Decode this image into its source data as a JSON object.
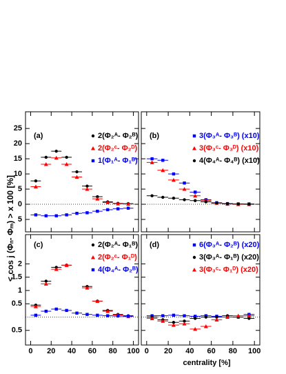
{
  "axis_labels": {
    "x": "centrality [%]",
    "y": "< cos j (Φₙ- Φₘ) > x 100 [%]"
  },
  "chart_data": [
    {
      "type": "scatter",
      "title": "(a)",
      "x": [
        5,
        15,
        25,
        35,
        45,
        55,
        65,
        75,
        85,
        95
      ],
      "xerr": 5,
      "xlim": [
        -5,
        105
      ],
      "xticks": [
        0,
        20,
        40,
        60,
        80,
        100
      ],
      "ylim": [
        -9.1,
        30.5
      ],
      "yticks": [
        {
          "value": -5,
          "label": "5"
        },
        0,
        5,
        10,
        15,
        20,
        25
      ],
      "show_xtick_labels": false,
      "show_ytick_labels": true,
      "zero_line": true,
      "series": [
        {
          "name": "2(Φ₂ᴬ- Φ₂ᴮ)",
          "color": "#000000",
          "marker": "circle",
          "values": [
            7.7,
            15.5,
            17.5,
            15.5,
            10.7,
            6.0,
            2.5,
            0.8,
            0.3,
            0.2
          ]
        },
        {
          "name": "2(Φ₂ᶜ- Φ₂ᴰ)",
          "color": "#ff0000",
          "marker": "triangle",
          "values": [
            5.8,
            13.2,
            15.3,
            13.2,
            9.0,
            5.0,
            1.8,
            0.6,
            0.2,
            0.1
          ]
        },
        {
          "name": "1(Φ₁ᴬ- Φ₁ᴮ)",
          "color": "#0000ff",
          "marker": "square",
          "values": [
            -3.5,
            -3.8,
            -3.8,
            -3.5,
            -3.0,
            -2.8,
            -2.3,
            -1.8,
            -1.5,
            -1.3
          ]
        }
      ]
    },
    {
      "type": "scatter",
      "title": "(b)",
      "x": [
        5,
        15,
        25,
        35,
        45,
        55,
        65,
        75,
        85,
        95
      ],
      "xerr": 5,
      "xlim": [
        -5,
        105
      ],
      "xticks": [
        0,
        20,
        40,
        60,
        80,
        100
      ],
      "ylim": [
        -9.1,
        30.5
      ],
      "yticks": [
        -5,
        0,
        5,
        10,
        15,
        20,
        25
      ],
      "show_xtick_labels": false,
      "show_ytick_labels": false,
      "zero_line": true,
      "series": [
        {
          "name": "3(Φ₃ᴬ- Φ₃ᴮ) (x10)",
          "color": "#0000ff",
          "marker": "square",
          "values": [
            15,
            14.5,
            10,
            7,
            4,
            1.5,
            0.5,
            0.2,
            0.1,
            0.1
          ]
        },
        {
          "name": "3(Φ₃ᶜ- Φ₃ᴰ) (x10)",
          "color": "#ff0000",
          "marker": "triangle",
          "values": [
            13.8,
            11.2,
            8,
            5,
            2.8,
            1.2,
            0.4,
            0.1,
            0,
            0
          ]
        },
        {
          "name": "4(Φ₄ᴬ- Φ₄ᴮ) (x10)",
          "color": "#000000",
          "marker": "circle",
          "values": [
            2.8,
            2.3,
            2,
            1.5,
            1.2,
            0.8,
            0.4,
            0.2,
            0.1,
            0
          ]
        }
      ]
    },
    {
      "type": "scatter",
      "title": "(c)",
      "x": [
        5,
        15,
        25,
        35,
        45,
        55,
        65,
        75,
        85,
        95
      ],
      "xerr": 5,
      "xlim": [
        -5,
        105
      ],
      "xticks": [
        0,
        20,
        40,
        60,
        80,
        100
      ],
      "ylim": [
        -1.05,
        3.1
      ],
      "yticks": [
        {
          "value": -0.5,
          "label": "0.5"
        },
        0.5,
        1,
        1.5,
        2
      ],
      "show_xtick_labels": true,
      "show_ytick_labels": true,
      "zero_line": true,
      "series": [
        {
          "name": "2(Φ₂ᴬ- Φ₁ᴮ)",
          "color": "#000000",
          "marker": "circle",
          "values": [
            0.45,
            1.35,
            1.87,
            1.95,
            null,
            1.15,
            0.6,
            0.25,
            0.1,
            0.05
          ]
        },
        {
          "name": "2(Φ₂ᶜ- Φ₁ᴰ)",
          "color": "#ff0000",
          "marker": "triangle",
          "values": [
            0.4,
            1.25,
            1.8,
            1.95,
            null,
            1.1,
            0.6,
            0.22,
            0.08,
            0.03
          ]
        },
        {
          "name": "4(Φ₄ᴬ- Φ₂ᴮ)",
          "color": "#0000ff",
          "marker": "square",
          "values": [
            0.07,
            0.22,
            0.3,
            0.25,
            0.15,
            0.1,
            0.07,
            0.05,
            0.04,
            0.03
          ]
        }
      ]
    },
    {
      "type": "scatter",
      "title": "(d)",
      "x": [
        5,
        15,
        25,
        35,
        45,
        55,
        65,
        75,
        85,
        95
      ],
      "xerr": 5,
      "xlim": [
        -5,
        105
      ],
      "xticks": [
        0,
        20,
        40,
        60,
        80,
        100
      ],
      "ylim": [
        -1.05,
        3.1
      ],
      "yticks": [
        -0.5,
        0.5,
        1,
        1.5,
        2
      ],
      "show_xtick_labels": true,
      "show_ytick_labels": false,
      "zero_line": true,
      "series": [
        {
          "name": "6(Φ₃ᴬ- Φ₂ᴮ) (x20)",
          "color": "#0000ff",
          "marker": "square",
          "values": [
            0.05,
            0.05,
            0.07,
            0.05,
            0.03,
            0.05,
            0.03,
            0,
            0,
            0.1
          ]
        },
        {
          "name": "3(Φ₃ᴬ- Φ₁ᴮ) (x20)",
          "color": "#000000",
          "marker": "circle",
          "values": [
            0,
            -0.1,
            -0.2,
            -0.15,
            -0.05,
            0,
            0,
            0.05,
            0,
            -0.05
          ]
        },
        {
          "name": "3(Φ₃ᶜ- Φ₁ᴰ) (x20)",
          "color": "#ff0000",
          "marker": "triangle",
          "values": [
            -0.05,
            -0.15,
            -0.3,
            -0.25,
            -0.45,
            -0.35,
            -0.1,
            0,
            0.05,
            0.05
          ]
        }
      ]
    }
  ]
}
